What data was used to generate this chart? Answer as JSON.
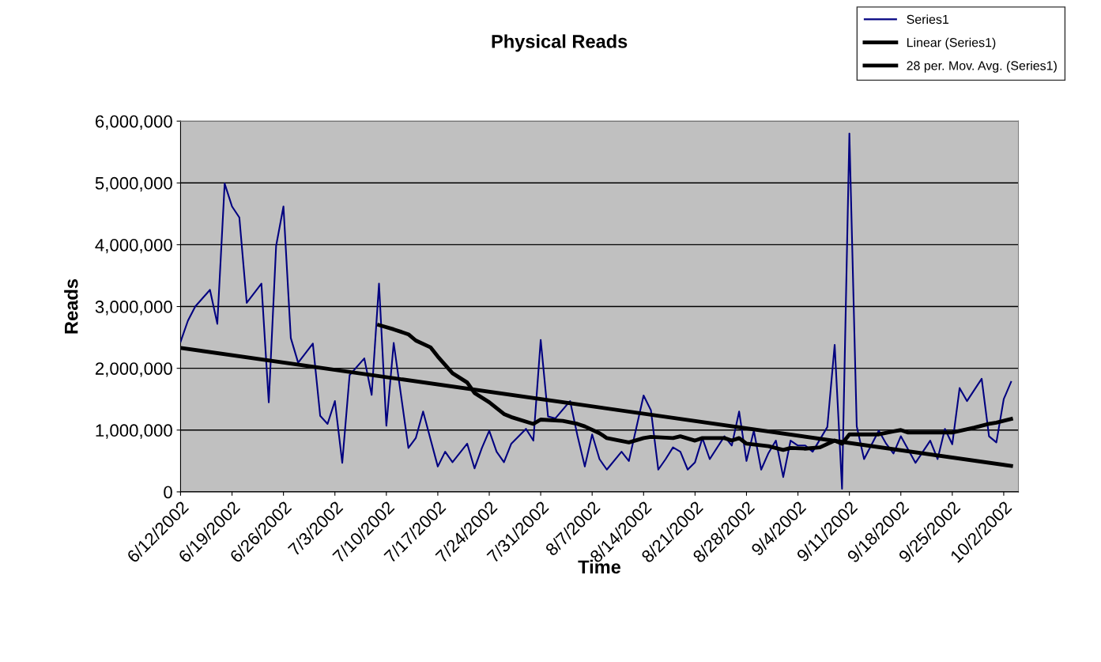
{
  "chart_data": {
    "type": "line",
    "title": "Physical Reads",
    "xlabel": "Time",
    "ylabel": "Reads",
    "series": [
      {
        "name": "Series1",
        "color": "#000080",
        "x": [
          "2002-06-12",
          "2002-06-13",
          "2002-06-14",
          "2002-06-16",
          "2002-06-17",
          "2002-06-18",
          "2002-06-19",
          "2002-06-20",
          "2002-06-21",
          "2002-06-23",
          "2002-06-24",
          "2002-06-25",
          "2002-06-26",
          "2002-06-27",
          "2002-06-28",
          "2002-06-30",
          "2002-07-01",
          "2002-07-02",
          "2002-07-03",
          "2002-07-04",
          "2002-07-05",
          "2002-07-07",
          "2002-07-08",
          "2002-07-09",
          "2002-07-10",
          "2002-07-11",
          "2002-07-13",
          "2002-07-14",
          "2002-07-15",
          "2002-07-17",
          "2002-07-18",
          "2002-07-19",
          "2002-07-21",
          "2002-07-22",
          "2002-07-23",
          "2002-07-24",
          "2002-07-25",
          "2002-07-26",
          "2002-07-27",
          "2002-07-29",
          "2002-07-30",
          "2002-07-31",
          "2002-08-01",
          "2002-08-02",
          "2002-08-04",
          "2002-08-05",
          "2002-08-06",
          "2002-08-07",
          "2002-08-08",
          "2002-08-09",
          "2002-08-11",
          "2002-08-12",
          "2002-08-14",
          "2002-08-15",
          "2002-08-16",
          "2002-08-17",
          "2002-08-18",
          "2002-08-19",
          "2002-08-20",
          "2002-08-21",
          "2002-08-22",
          "2002-08-23",
          "2002-08-25",
          "2002-08-26",
          "2002-08-27",
          "2002-08-28",
          "2002-08-29",
          "2002-08-30",
          "2002-08-31",
          "2002-09-01",
          "2002-09-02",
          "2002-09-03",
          "2002-09-04",
          "2002-09-05",
          "2002-09-06",
          "2002-09-08",
          "2002-09-09",
          "2002-09-10",
          "2002-09-11",
          "2002-09-12",
          "2002-09-13",
          "2002-09-15",
          "2002-09-16",
          "2002-09-17",
          "2002-09-18",
          "2002-09-20",
          "2002-09-22",
          "2002-09-23",
          "2002-09-24",
          "2002-09-25",
          "2002-09-26",
          "2002-09-27",
          "2002-09-29",
          "2002-09-30",
          "2002-10-01",
          "2002-10-02",
          "2002-10-03"
        ],
        "values": [
          2430000,
          2770000,
          3000000,
          3270000,
          2720000,
          4990000,
          4620000,
          4440000,
          3060000,
          3370000,
          1450000,
          3980000,
          4620000,
          2490000,
          2090000,
          2400000,
          1230000,
          1100000,
          1470000,
          470000,
          1890000,
          2160000,
          1570000,
          3370000,
          1070000,
          2410000,
          710000,
          870000,
          1300000,
          410000,
          650000,
          480000,
          780000,
          380000,
          710000,
          990000,
          650000,
          480000,
          780000,
          1020000,
          830000,
          2460000,
          1220000,
          1190000,
          1470000,
          910000,
          410000,
          930000,
          530000,
          360000,
          650000,
          500000,
          1560000,
          1320000,
          360000,
          530000,
          720000,
          650000,
          360000,
          480000,
          870000,
          530000,
          900000,
          750000,
          1300000,
          500000,
          990000,
          360000,
          630000,
          830000,
          240000,
          830000,
          750000,
          750000,
          650000,
          1050000,
          2380000,
          50000,
          5800000,
          1060000,
          530000,
          990000,
          780000,
          620000,
          900000,
          470000,
          830000,
          530000,
          1020000,
          770000,
          1680000,
          1470000,
          1830000,
          900000,
          800000,
          1500000,
          1780000
        ]
      },
      {
        "name": "Linear (Series1)",
        "color": "#000000",
        "x": [
          "2002-06-12",
          "2002-10-03"
        ],
        "values": [
          2330000,
          420000
        ]
      },
      {
        "name": "28 per. Mov. Avg. (Series1)",
        "color": "#000000",
        "x": [
          "2002-07-09",
          "2002-07-11",
          "2002-07-13",
          "2002-07-14",
          "2002-07-16",
          "2002-07-17",
          "2002-07-19",
          "2002-07-21",
          "2002-07-22",
          "2002-07-24",
          "2002-07-26",
          "2002-07-27",
          "2002-07-30",
          "2002-07-31",
          "2002-08-03",
          "2002-08-05",
          "2002-08-06",
          "2002-08-08",
          "2002-08-09",
          "2002-08-12",
          "2002-08-14",
          "2002-08-15",
          "2002-08-18",
          "2002-08-19",
          "2002-08-21",
          "2002-08-22",
          "2002-08-25",
          "2002-08-26",
          "2002-08-27",
          "2002-08-28",
          "2002-08-31",
          "2002-09-02",
          "2002-09-03",
          "2002-09-05",
          "2002-09-07",
          "2002-09-09",
          "2002-09-10",
          "2002-09-11",
          "2002-09-15",
          "2002-09-17",
          "2002-09-18",
          "2002-09-19",
          "2002-09-25",
          "2002-09-28",
          "2002-09-30",
          "2002-10-01",
          "2002-10-03"
        ],
        "values": [
          2700000,
          2630000,
          2550000,
          2450000,
          2340000,
          2190000,
          1920000,
          1770000,
          1600000,
          1450000,
          1260000,
          1210000,
          1100000,
          1170000,
          1150000,
          1100000,
          1060000,
          950000,
          870000,
          800000,
          870000,
          890000,
          870000,
          900000,
          830000,
          870000,
          870000,
          830000,
          870000,
          780000,
          740000,
          680000,
          710000,
          700000,
          720000,
          830000,
          780000,
          930000,
          930000,
          980000,
          1000000,
          960000,
          960000,
          1040000,
          1100000,
          1120000,
          1180000
        ]
      }
    ],
    "xlim": [
      "2002-06-12",
      "2002-10-04"
    ],
    "xticks": [
      {
        "value": "2002-06-12",
        "label": "6/12/2002"
      },
      {
        "value": "2002-06-19",
        "label": "6/19/2002"
      },
      {
        "value": "2002-06-26",
        "label": "6/26/2002"
      },
      {
        "value": "2002-07-03",
        "label": "7/3/2002"
      },
      {
        "value": "2002-07-10",
        "label": "7/10/2002"
      },
      {
        "value": "2002-07-17",
        "label": "7/17/2002"
      },
      {
        "value": "2002-07-24",
        "label": "7/24/2002"
      },
      {
        "value": "2002-07-31",
        "label": "7/31/2002"
      },
      {
        "value": "2002-08-07",
        "label": "8/7/2002"
      },
      {
        "value": "2002-08-14",
        "label": "8/14/2002"
      },
      {
        "value": "2002-08-21",
        "label": "8/21/2002"
      },
      {
        "value": "2002-08-28",
        "label": "8/28/2002"
      },
      {
        "value": "2002-09-04",
        "label": "9/4/2002"
      },
      {
        "value": "2002-09-11",
        "label": "9/11/2002"
      },
      {
        "value": "2002-09-18",
        "label": "9/18/2002"
      },
      {
        "value": "2002-09-25",
        "label": "9/25/2002"
      },
      {
        "value": "2002-10-02",
        "label": "10/2/2002"
      }
    ],
    "ylim": [
      0,
      6000000
    ],
    "yticks": [
      0,
      {
        "value": 1000000,
        "label": "1,000,000"
      },
      {
        "value": 2000000,
        "label": "2,000,000"
      },
      {
        "value": 3000000,
        "label": "3,000,000"
      },
      {
        "value": 4000000,
        "label": "4,000,000"
      },
      {
        "value": 5000000,
        "label": "5,000,000"
      },
      {
        "value": 6000000,
        "label": "6,000,000"
      }
    ],
    "grid": "y",
    "legend": "top right",
    "marker": "none",
    "line_style": "solid"
  }
}
